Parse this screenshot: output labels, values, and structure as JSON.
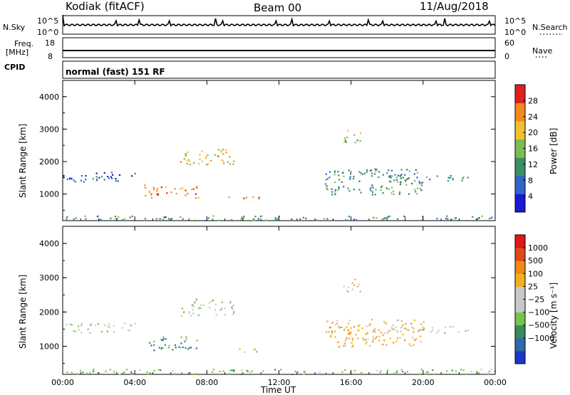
{
  "header": {
    "station": "Kodiak (fitACF)",
    "beam": "Beam 00",
    "date": "11/Aug/2018"
  },
  "noise_panel": {
    "left_label": "N.Sky",
    "right_label": "N.Search",
    "left_ticks": [
      "10^5",
      "10^0"
    ],
    "right_ticks": [
      "10^5",
      "10^0"
    ]
  },
  "freq_panel": {
    "left_label_1": "Freq.",
    "left_label_2": "[MHz]",
    "right_label": "Nave",
    "left_ticks": [
      "18",
      "8"
    ],
    "right_ticks": [
      "60",
      "0"
    ]
  },
  "cpid_panel": {
    "label": "CPID",
    "mode": "normal (fast) 151 RF"
  },
  "chart_data": [
    {
      "type": "heatmap",
      "name": "power",
      "ylabel": "Slant Range [km]",
      "ylim": [
        180,
        4500
      ],
      "yticks": [
        "1000",
        "2000",
        "3000",
        "4000"
      ],
      "xlim": [
        0,
        24
      ],
      "colorbar_label": "Power [dB]",
      "colorbar_ticks": [
        "4",
        "8",
        "12",
        "16",
        "20",
        "24",
        "28"
      ],
      "colors": [
        "#1a1ad6",
        "#2f66c8",
        "#3d8f64",
        "#7bbd52",
        "#f2c02e",
        "#f28a1e",
        "#e02020"
      ],
      "scatter_regions": [
        {
          "t0": 0.0,
          "t1": 24.0,
          "r0": 200,
          "r1": 350,
          "level": 2
        },
        {
          "t0": 0.0,
          "t1": 4.0,
          "r0": 1400,
          "r1": 1700,
          "level": 1
        },
        {
          "t0": 4.5,
          "t1": 7.5,
          "r0": 900,
          "r1": 1300,
          "level": 5
        },
        {
          "t0": 6.5,
          "t1": 9.5,
          "r0": 1900,
          "r1": 2400,
          "level": 4
        },
        {
          "t0": 9.0,
          "t1": 11.0,
          "r0": 850,
          "r1": 950,
          "level": 5
        },
        {
          "t0": 14.5,
          "t1": 20.0,
          "r0": 1000,
          "r1": 1800,
          "level": 2
        },
        {
          "t0": 18.0,
          "t1": 22.5,
          "r0": 1400,
          "r1": 1600,
          "level": 2
        },
        {
          "t0": 15.5,
          "t1": 16.5,
          "r0": 2600,
          "r1": 3000,
          "level": 3
        }
      ]
    },
    {
      "type": "heatmap",
      "name": "velocity",
      "ylabel": "Slant Range [km]",
      "ylim": [
        180,
        4500
      ],
      "yticks": [
        "1000",
        "2000",
        "3000",
        "4000"
      ],
      "xlim": [
        0,
        24
      ],
      "xticks": [
        "00:00",
        "04:00",
        "08:00",
        "12:00",
        "16:00",
        "20:00",
        "00:00"
      ],
      "xlabel": "Time UT",
      "colorbar_label": "Velocity [m s⁻¹]",
      "colorbar_ticks": [
        "1000",
        "500",
        "100",
        "25",
        "−25",
        "−100",
        "−500",
        "−1000"
      ],
      "colors": [
        "#1a38c8",
        "#2e6aa8",
        "#3a8a5e",
        "#79c34a",
        "#c8c8c8",
        "#c8c8c8",
        "#f2b020",
        "#f08a18",
        "#e04818",
        "#e01818"
      ],
      "scatter_regions": [
        {
          "t0": 0.0,
          "t1": 24.0,
          "r0": 200,
          "r1": 350,
          "level": 3
        },
        {
          "t0": 0.0,
          "t1": 4.0,
          "r0": 1400,
          "r1": 1700,
          "level": 4
        },
        {
          "t0": 4.5,
          "t1": 7.5,
          "r0": 900,
          "r1": 1300,
          "level": 2
        },
        {
          "t0": 6.5,
          "t1": 9.5,
          "r0": 1900,
          "r1": 2400,
          "level": 4
        },
        {
          "t0": 9.0,
          "t1": 11.0,
          "r0": 850,
          "r1": 950,
          "level": 6
        },
        {
          "t0": 14.5,
          "t1": 20.0,
          "r0": 1000,
          "r1": 1800,
          "level": 6
        },
        {
          "t0": 18.0,
          "t1": 22.5,
          "r0": 1400,
          "r1": 1600,
          "level": 4
        },
        {
          "t0": 15.5,
          "t1": 16.5,
          "r0": 2600,
          "r1": 3000,
          "level": 6
        }
      ]
    }
  ]
}
